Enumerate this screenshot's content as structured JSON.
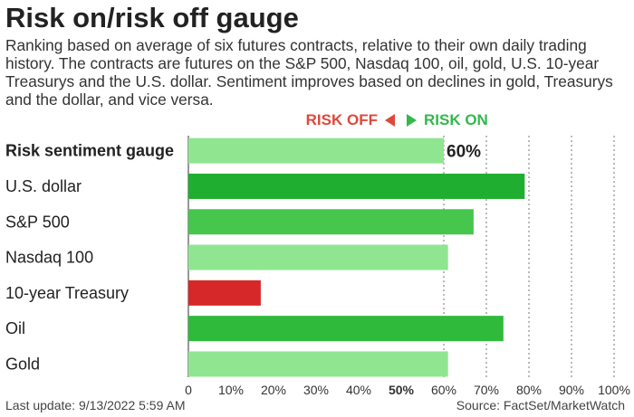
{
  "chart_data": {
    "type": "bar",
    "orientation": "horizontal",
    "title": "Risk on/risk off gauge",
    "subtitle": "Ranking based on average of six futures contracts, relative to their own daily trading history. The contracts are futures on the S&P 500, Nasdaq 100, oil, gold, U.S. 10-year Treasurys and the U.S. dollar. Sentiment improves based on declines in gold, Treasurys and the dollar, and vice versa.",
    "legend": {
      "risk_off": "RISK OFF",
      "risk_on": "RISK ON",
      "placement": "top"
    },
    "categories": [
      "Risk sentiment gauge",
      "U.S. dollar",
      "S&P 500",
      "Nasdaq 100",
      "10-year Treasury",
      "Oil",
      "Gold"
    ],
    "values": [
      60,
      79,
      67,
      61,
      17,
      74,
      61
    ],
    "value_labels": [
      "60%",
      "",
      "",
      "",
      "",
      "",
      ""
    ],
    "bar_colors": [
      "#90e690",
      "#1fae2f",
      "#46c64c",
      "#90e690",
      "#d62828",
      "#2fba3c",
      "#90e690"
    ],
    "xlim": [
      0,
      100
    ],
    "xticks": [
      "0",
      "10%",
      "20%",
      "30%",
      "40%",
      "50%",
      "60%",
      "70%",
      "80%",
      "90%",
      "100%"
    ],
    "grid": "vertical dotted lines from 60% to 100%",
    "footer_left": "Last update: 9/13/2022 5:59 AM",
    "footer_right": "Source: FactSet/MarketWatch"
  }
}
